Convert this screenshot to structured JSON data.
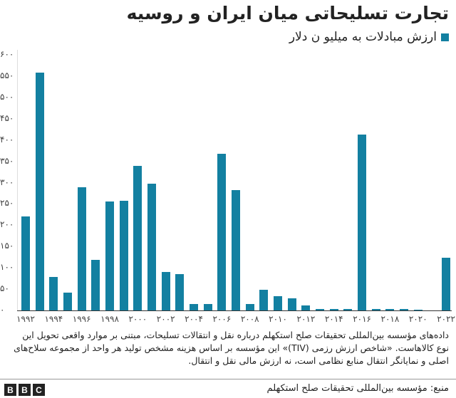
{
  "header": {
    "title": "تجارت تسلیحاتی میان ایران و روسیه",
    "legend_label": "ارزش مبادلات به میلیو ن دلار",
    "legend_color": "#1380A1"
  },
  "footer": {
    "note": "داده‌های مؤسسه بین‌المللی تحقیقات صلح استکهلم درباره نقل و انتقالات تسلیحات، مبتنی بر موارد واقعی تحویل این نوع کالاهاست. «شاخص ارزش رزمی (TIV)» این مؤسسه بر اساس هزینه مشخص تولید هر واحد از مجموعه سلاح‌های اصلی و نمایانگر انتقال منابع نظامی است، نه ارزش مالی نقل و انتقال.",
    "source": "منبع: مؤسسه بین‌المللی تحقیقات صلح استکهلم",
    "logo": [
      "B",
      "B",
      "C"
    ]
  },
  "chart_data": {
    "type": "bar",
    "title": "تجارت تسلیحاتی میان ایران و روسیه",
    "xlabel": "",
    "ylabel": "",
    "ylim": [
      0,
      600
    ],
    "legend": [
      "ارزش مبادلات به میلیو ن دلار"
    ],
    "grid": false,
    "y_ticks": [
      {
        "v": 0,
        "label": "۰"
      },
      {
        "v": 50,
        "label": "۵۰"
      },
      {
        "v": 100,
        "label": "۱۰۰"
      },
      {
        "v": 150,
        "label": "۱۵۰"
      },
      {
        "v": 200,
        "label": "۲۰۰"
      },
      {
        "v": 250,
        "label": "۲۵۰"
      },
      {
        "v": 300,
        "label": "۳۰۰"
      },
      {
        "v": 350,
        "label": "۳۵۰"
      },
      {
        "v": 400,
        "label": "۴۰۰"
      },
      {
        "v": 450,
        "label": "۴۵۰"
      },
      {
        "v": 500,
        "label": "۵۰۰"
      },
      {
        "v": 550,
        "label": "۵۵۰"
      },
      {
        "v": 600,
        "label": "۶۰۰"
      }
    ],
    "x_tick_labels": {
      "1992": "۱۹۹۲",
      "1994": "۱۹۹۴",
      "1996": "۱۹۹۶",
      "1998": "۱۹۹۸",
      "2000": "۲۰۰۰",
      "2002": "۲۰۰۲",
      "2004": "۲۰۰۴",
      "2006": "۲۰۰۶",
      "2008": "۲۰۰۸",
      "2010": "۲۰۱۰",
      "2012": "۲۰۱۲",
      "2014": "۲۰۱۴",
      "2016": "۲۰۱۶",
      "2018": "۲۰۱۸",
      "2020": "۲۰۲۰",
      "2022": "۲۰۲۲"
    },
    "categories": [
      1992,
      1993,
      1994,
      1995,
      1996,
      1997,
      1998,
      1999,
      2000,
      2001,
      2002,
      2003,
      2004,
      2005,
      2006,
      2007,
      2008,
      2009,
      2010,
      2011,
      2012,
      2013,
      2014,
      2015,
      2016,
      2017,
      2018,
      2019,
      2020,
      2021,
      2022
    ],
    "values": [
      221,
      558,
      79,
      42,
      289,
      119,
      256,
      258,
      339,
      298,
      90,
      85,
      15,
      15,
      368,
      283,
      15,
      48,
      33,
      28,
      12,
      4,
      4,
      4,
      413,
      3,
      3,
      3,
      2,
      0,
      124
    ]
  }
}
